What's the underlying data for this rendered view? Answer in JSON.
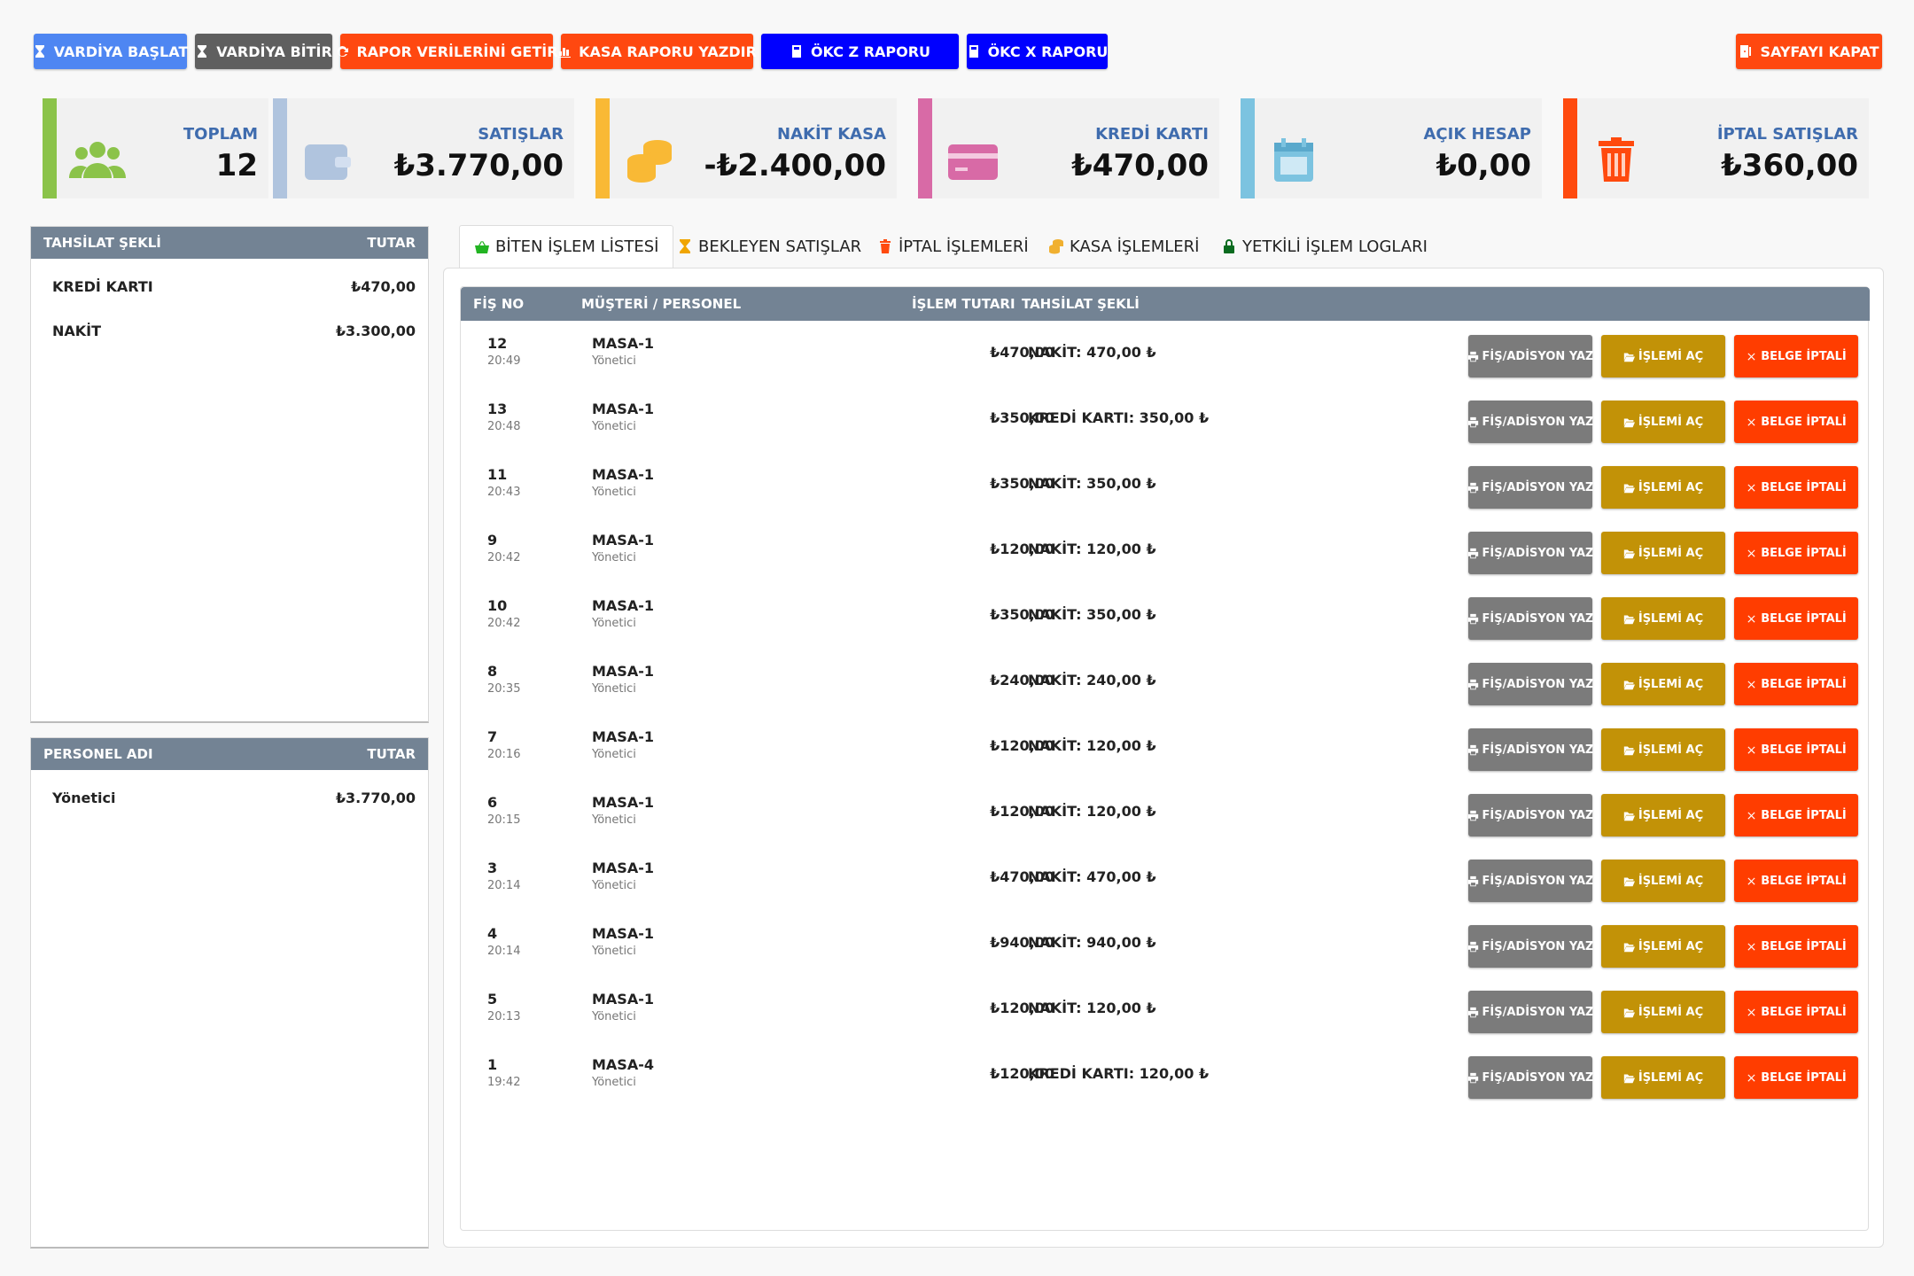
{
  "toolbar": {
    "start_shift": "VARDİYA BAŞLAT",
    "end_shift": "VARDİYA BİTİR",
    "fetch_report": "RAPOR VERİLERİNİ GETİR",
    "print_cash_report": "KASA RAPORU YAZDIR",
    "okc_z": "ÖKC Z RAPORU",
    "okc_x": "ÖKC X RAPORU",
    "close_page": "SAYFAYI KAPAT"
  },
  "stats": [
    {
      "title": "TOPLAM",
      "value": "12",
      "color": "#8bc34a",
      "icon": "users-icon"
    },
    {
      "title": "SATIŞLAR",
      "value": "₺3.770,00",
      "color": "#b0c4de",
      "icon": "wallet-icon"
    },
    {
      "title": "NAKİT KASA",
      "value": "-₺2.400,00",
      "color": "#f9b935",
      "icon": "coins-icon"
    },
    {
      "title": "KREDİ KARTI",
      "value": "₺470,00",
      "color": "#d86aa6",
      "icon": "credit-card-icon"
    },
    {
      "title": "AÇIK HESAP",
      "value": "₺0,00",
      "color": "#7cc3e0",
      "icon": "calendar-icon"
    },
    {
      "title": "İPTAL SATIŞLAR",
      "value": "₺360,00",
      "color": "#ff4a0e",
      "icon": "trash-icon"
    }
  ],
  "payment_panel": {
    "col1": "TAHSİLAT ŞEKLİ",
    "col2": "TUTAR",
    "rows": [
      {
        "label": "KREDİ KARTI",
        "amount": "₺470,00"
      },
      {
        "label": "NAKİT",
        "amount": "₺3.300,00"
      }
    ]
  },
  "staff_panel": {
    "col1": "PERSONEL ADI",
    "col2": "TUTAR",
    "rows": [
      {
        "label": "Yönetici",
        "amount": "₺3.770,00"
      }
    ]
  },
  "tabs": [
    {
      "label": "BİTEN İŞLEM LİSTESİ",
      "icon": "basket-icon",
      "active": true
    },
    {
      "label": "BEKLEYEN SATIŞLAR",
      "icon": "hourglass-icon"
    },
    {
      "label": "İPTAL İŞLEMLERİ",
      "icon": "trash-icon"
    },
    {
      "label": "KASA İŞLEMLERİ",
      "icon": "coins-icon"
    },
    {
      "label": "YETKİLİ İŞLEM LOGLARI",
      "icon": "lock-icon"
    }
  ],
  "table": {
    "headers": {
      "fis_no": "FİŞ NO",
      "customer": "MÜŞTERİ / PERSONEL",
      "amount": "İŞLEM TUTARI",
      "payment": "TAHSİLAT ŞEKLİ"
    },
    "buttons": {
      "print": "FİŞ/ADİSYON YAZ",
      "open": "İŞLEMİ AÇ",
      "cancel": "BELGE İPTALİ"
    },
    "rows": [
      {
        "no": "12",
        "time": "20:49",
        "customer": "MASA-1",
        "staff": "Yönetici",
        "amount": "₺470,00",
        "payment": "NAKİT: 470,00 ₺"
      },
      {
        "no": "13",
        "time": "20:48",
        "customer": "MASA-1",
        "staff": "Yönetici",
        "amount": "₺350,00",
        "payment": "KREDİ KARTI: 350,00 ₺"
      },
      {
        "no": "11",
        "time": "20:43",
        "customer": "MASA-1",
        "staff": "Yönetici",
        "amount": "₺350,00",
        "payment": "NAKİT: 350,00 ₺"
      },
      {
        "no": "9",
        "time": "20:42",
        "customer": "MASA-1",
        "staff": "Yönetici",
        "amount": "₺120,00",
        "payment": "NAKİT: 120,00 ₺"
      },
      {
        "no": "10",
        "time": "20:42",
        "customer": "MASA-1",
        "staff": "Yönetici",
        "amount": "₺350,00",
        "payment": "NAKİT: 350,00 ₺"
      },
      {
        "no": "8",
        "time": "20:35",
        "customer": "MASA-1",
        "staff": "Yönetici",
        "amount": "₺240,00",
        "payment": "NAKİT: 240,00 ₺"
      },
      {
        "no": "7",
        "time": "20:16",
        "customer": "MASA-1",
        "staff": "Yönetici",
        "amount": "₺120,00",
        "payment": "NAKİT: 120,00 ₺"
      },
      {
        "no": "6",
        "time": "20:15",
        "customer": "MASA-1",
        "staff": "Yönetici",
        "amount": "₺120,00",
        "payment": "NAKİT: 120,00 ₺"
      },
      {
        "no": "3",
        "time": "20:14",
        "customer": "MASA-1",
        "staff": "Yönetici",
        "amount": "₺470,00",
        "payment": "NAKİT: 470,00 ₺"
      },
      {
        "no": "4",
        "time": "20:14",
        "customer": "MASA-1",
        "staff": "Yönetici",
        "amount": "₺940,00",
        "payment": "NAKİT: 940,00 ₺"
      },
      {
        "no": "5",
        "time": "20:13",
        "customer": "MASA-1",
        "staff": "Yönetici",
        "amount": "₺120,00",
        "payment": "NAKİT: 120,00 ₺"
      },
      {
        "no": "1",
        "time": "19:42",
        "customer": "MASA-4",
        "staff": "Yönetici",
        "amount": "₺120,00",
        "payment": "KREDİ KARTI: 120,00 ₺"
      }
    ]
  }
}
